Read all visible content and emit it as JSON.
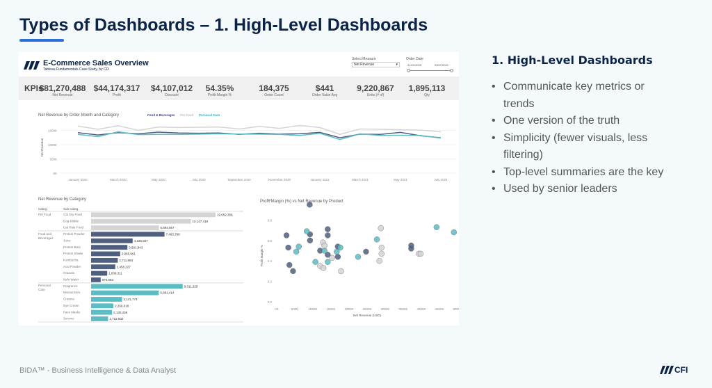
{
  "slide": {
    "title": "Types of Dashboards – 1. High-Level Dashboards",
    "footer": "BIDA™ - Business Intelligence & Data Analyst",
    "footer_logo": "CFI"
  },
  "dashboard": {
    "title": "E-Commerce Sales Overview",
    "subtitle": "Tableau Fundamentals Case Study, by CFI",
    "select_measure_label": "Select Measure",
    "select_measure_value": "Net Revenue",
    "order_date_label": "Order Date",
    "date_start": "01/01/2020",
    "date_end": "29/07/2021",
    "kpi_title": "KPIs",
    "kpis": [
      {
        "value": "$81,270,488",
        "label": "Net Revenue"
      },
      {
        "value": "$44,174,317",
        "label": "Profit"
      },
      {
        "value": "$4,107,012",
        "label": "Discount"
      },
      {
        "value": "54.35%",
        "label": "Profit Margin %"
      },
      {
        "value": "184,375",
        "label": "Order Count"
      },
      {
        "value": "$441",
        "label": "Order Value Avg"
      },
      {
        "value": "9,220,867",
        "label": "Units (# of)"
      },
      {
        "value": "1,895,113",
        "label": "Qty"
      }
    ]
  },
  "colors": {
    "food": "#4f5f80",
    "pet": "#d4d4d4",
    "care": "#5bbcc4",
    "title": "#0c2348",
    "accent": "#2c6fd8"
  },
  "chart_data": [
    {
      "type": "line",
      "title": "Net Revenue by Order Month and Category",
      "ylabel": "Net Revenue",
      "ylim": [
        0,
        1750000
      ],
      "y_ticks": [
        "0K",
        "500K",
        "1000K",
        "1500K"
      ],
      "x_tick_labels": [
        "January 2020",
        "March 2020",
        "May 2020",
        "July 2020",
        "September 2020",
        "November 2020",
        "January 2021",
        "March 2021",
        "May 2021",
        "July 2021"
      ],
      "x": [
        "2020-01",
        "2020-02",
        "2020-03",
        "2020-04",
        "2020-05",
        "2020-06",
        "2020-07",
        "2020-08",
        "2020-09",
        "2020-10",
        "2020-11",
        "2020-12",
        "2021-01",
        "2021-02",
        "2021-03",
        "2021-04",
        "2021-05",
        "2021-06",
        "2021-07"
      ],
      "series": [
        {
          "name": "Pet Food",
          "color": "#d4d4d4",
          "values": [
            1650,
            1540,
            1660,
            1500,
            1620,
            1600,
            1610,
            1620,
            1550,
            1640,
            1570,
            1670,
            1600,
            1360,
            1550,
            1540,
            1520,
            1510,
            1450
          ]
        },
        {
          "name": "Food & Beverages",
          "color": "#4f5f80",
          "values": [
            1420,
            1340,
            1420,
            1380,
            1440,
            1410,
            1400,
            1410,
            1360,
            1400,
            1370,
            1380,
            1430,
            1240,
            1370,
            1360,
            1430,
            1310,
            1240
          ]
        },
        {
          "name": "Personal Care",
          "color": "#5bbcc4",
          "values": [
            1360,
            1280,
            1450,
            1350,
            1360,
            1360,
            1370,
            1380,
            1370,
            1370,
            1360,
            1320,
            1400,
            1180,
            1380,
            1320,
            1330,
            1320,
            1230
          ]
        }
      ],
      "legend": [
        "Food & Beverages",
        "Pet Food",
        "Personal Care"
      ],
      "value_unit": "K"
    },
    {
      "type": "bar",
      "title": "Net Revenue by Category",
      "column_headers": [
        "Categ..",
        "Sub Categ.."
      ],
      "groups": [
        {
          "category": "Pet Food",
          "color": "#d4d4d4",
          "items": [
            [
              "Cat Dry Food",
              12652358,
              "12,652,358"
            ],
            [
              "Dog Kibble",
              10147418,
              "10,147,418"
            ],
            [
              "Cat Pate Food",
              6894667,
              "6,894,667"
            ]
          ]
        },
        {
          "category": "Food and Beverages",
          "color": "#4f5f80",
          "items": [
            [
              "Protein Powder",
              7463798,
              "7,463,798"
            ],
            [
              "Juice",
              4225827,
              "4,225,827"
            ],
            [
              "Protein Bars",
              3691843,
              "3,691,843"
            ],
            [
              "Protein Shake",
              2955961,
              "2,955,961"
            ],
            [
              "Kombucha",
              2711893,
              "2,711,893"
            ],
            [
              "Acai Powder",
              2458227,
              "2,458,227"
            ],
            [
              "Granola",
              1638311,
              "1,638,311"
            ],
            [
              "Kefir Water",
              975683,
              "975,683"
            ]
          ]
        },
        {
          "category": "Personal Care",
          "color": "#5bbcc4",
          "items": [
            [
              "Fragrance",
              9311325,
              "9,311,325"
            ],
            [
              "Moisturizers",
              6881414,
              "6,881,414"
            ],
            [
              "Creams",
              3141774,
              "3,141,774"
            ],
            [
              "Eye Cream",
              2266618,
              "2,266,618"
            ],
            [
              "Face Masks",
              2130439,
              "2,130,439"
            ],
            [
              "Serums",
              1722932,
              "1,722,932"
            ]
          ]
        }
      ]
    },
    {
      "type": "scatter",
      "title": "Profit Margin (%) vs Net Revenue by Product",
      "xlabel": "Net Revenue (USD)",
      "ylabel": "Profit Margin %",
      "xlim": [
        0,
        5000
      ],
      "ylim": [
        0,
        1
      ],
      "x_ticks": [
        "0K",
        "500K",
        "1000K",
        "1500K",
        "2000K",
        "2500K",
        "3000K",
        "3500K",
        "4000K",
        "4500K",
        "5000K"
      ],
      "y_ticks": [
        "0.0",
        "0.2",
        "0.4",
        "0.6",
        "0.8",
        "1.0"
      ],
      "series": [
        {
          "category": "Food and Beverages",
          "color": "#4f5f80",
          "points": [
            [
              910,
              0.95
            ],
            [
              270,
              0.65
            ],
            [
              320,
              0.53
            ],
            [
              350,
              0.36
            ],
            [
              450,
              0.3
            ],
            [
              920,
              0.66
            ],
            [
              920,
              0.6
            ],
            [
              1200,
              0.5
            ],
            [
              1410,
              0.71
            ],
            [
              1410,
              0.65
            ],
            [
              1410,
              0.46
            ],
            [
              1690,
              0.54
            ],
            [
              1690,
              0.44
            ],
            [
              2470,
              0.49
            ],
            [
              3720,
              0.55
            ],
            [
              3720,
              0.52
            ]
          ]
        },
        {
          "category": "Personal Care",
          "color": "#5bbcc4",
          "points": [
            [
              830,
              0.69
            ],
            [
              540,
              0.49
            ],
            [
              610,
              0.54
            ],
            [
              1070,
              0.39
            ],
            [
              1320,
              0.5
            ],
            [
              1410,
              0.39
            ],
            [
              1660,
              0.49
            ],
            [
              1760,
              0.53
            ],
            [
              2250,
              0.44
            ],
            [
              2770,
              0.61
            ],
            [
              4420,
              0.73
            ],
            [
              4900,
              0.68
            ]
          ]
        },
        {
          "category": "Pet Food",
          "color": "#d4d4d4",
          "points": [
            [
              1280,
              0.58
            ],
            [
              1320,
              0.55
            ],
            [
              1200,
              0.35
            ],
            [
              1290,
              0.33
            ],
            [
              1530,
              0.43
            ],
            [
              1780,
              0.3
            ],
            [
              2880,
              0.72
            ],
            [
              2900,
              0.53
            ],
            [
              2900,
              0.47
            ],
            [
              2840,
              0.4
            ],
            [
              3930,
              0.47
            ],
            [
              3980,
              0.47
            ]
          ]
        }
      ]
    }
  ],
  "side": {
    "heading": "1. High-Level Dashboards",
    "bullets": [
      "Communicate key metrics or trends",
      "One version of the truth",
      "Simplicity (fewer visuals, less filtering)",
      "Top-level summaries are the key",
      "Used by senior leaders"
    ]
  }
}
